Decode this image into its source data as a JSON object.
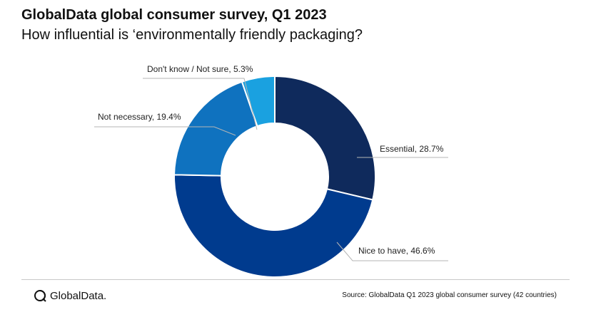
{
  "chart_data": {
    "type": "pie",
    "title": "GlobalData global consumer survey, Q1 2023",
    "subtitle": "How influential is ‘environmentally friendly packaging?",
    "slices": [
      {
        "label": "Essential, 28.7%",
        "value": 28.7,
        "color": "#0f2a5c"
      },
      {
        "label": "Nice to have, 46.6%",
        "value": 46.6,
        "color": "#003b8e"
      },
      {
        "label": "Not necessary, 19.4%",
        "value": 19.4,
        "color": "#0f72bf"
      },
      {
        "label": "Don't know / Not sure, 5.3%",
        "value": 5.3,
        "color": "#1aa1e0"
      }
    ]
  },
  "footer": {
    "logo_text": "GlobalData.",
    "source": "Source: GlobalData  Q1 2023 global consumer  survey (42 countries)"
  }
}
